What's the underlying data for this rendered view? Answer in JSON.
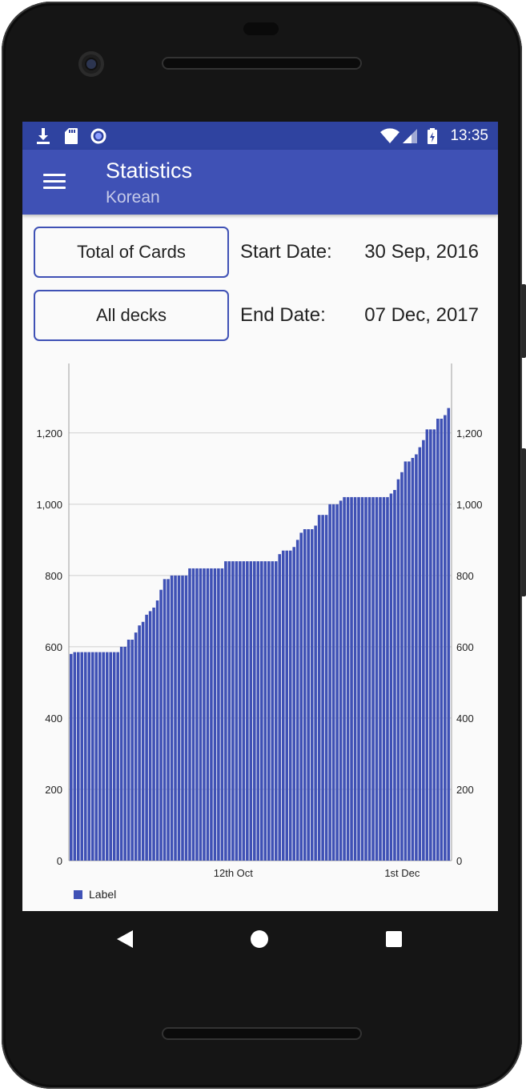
{
  "status_bar": {
    "time": "13:35",
    "left_icons": [
      "download-icon",
      "sd-card-icon",
      "sync-circle-icon"
    ],
    "right_icons": [
      "wifi-icon",
      "cell-signal-icon",
      "battery-charging-icon"
    ]
  },
  "app_bar": {
    "title": "Statistics",
    "subtitle": "Korean",
    "menu_icon": "hamburger-menu-icon"
  },
  "controls": {
    "type_button_label": "Total of Cards",
    "deck_button_label": "All decks",
    "start_date_label": "Start Date:",
    "start_date_value": "30 Sep, 2016",
    "end_date_label": "End Date:",
    "end_date_value": "07 Dec, 2017"
  },
  "colors": {
    "primary": "#3f51b5",
    "status_bar": "#2f43a0",
    "subtitle": "#c5cae9"
  },
  "chart_data": {
    "type": "bar",
    "series": [
      {
        "name": "Label",
        "values": [
          580,
          585,
          585,
          585,
          585,
          585,
          585,
          585,
          585,
          585,
          585,
          585,
          585,
          585,
          600,
          600,
          620,
          620,
          640,
          660,
          670,
          690,
          700,
          710,
          730,
          760,
          790,
          790,
          800,
          800,
          800,
          800,
          800,
          820,
          820,
          820,
          820,
          820,
          820,
          820,
          820,
          820,
          820,
          840,
          840,
          840,
          840,
          840,
          840,
          840,
          840,
          840,
          840,
          840,
          840,
          840,
          840,
          840,
          860,
          870,
          870,
          870,
          880,
          900,
          920,
          930,
          930,
          930,
          940,
          970,
          970,
          970,
          1000,
          1000,
          1000,
          1010,
          1020,
          1020,
          1020,
          1020,
          1020,
          1020,
          1020,
          1020,
          1020,
          1020,
          1020,
          1020,
          1020,
          1030,
          1040,
          1070,
          1090,
          1120,
          1120,
          1130,
          1140,
          1160,
          1180,
          1210,
          1210,
          1210,
          1240,
          1240,
          1250,
          1270
        ]
      }
    ],
    "x_tick_labels": [
      "12th Oct",
      "1st Dec"
    ],
    "x_tick_positions": [
      45,
      92
    ],
    "y_ticks": [
      0,
      200,
      400,
      600,
      800,
      1000,
      1200
    ],
    "y_tick_labels": [
      "0",
      "200",
      "400",
      "600",
      "800",
      "1,000",
      "1,200"
    ],
    "ylim": [
      0,
      1395
    ],
    "grid": "horizontal",
    "dual_y_axis": true,
    "legend": {
      "position": "bottom-left",
      "label": "Label"
    }
  },
  "nav_bar": {
    "back_icon": "back-triangle-icon",
    "home_icon": "home-circle-icon",
    "recents_icon": "recents-square-icon"
  }
}
